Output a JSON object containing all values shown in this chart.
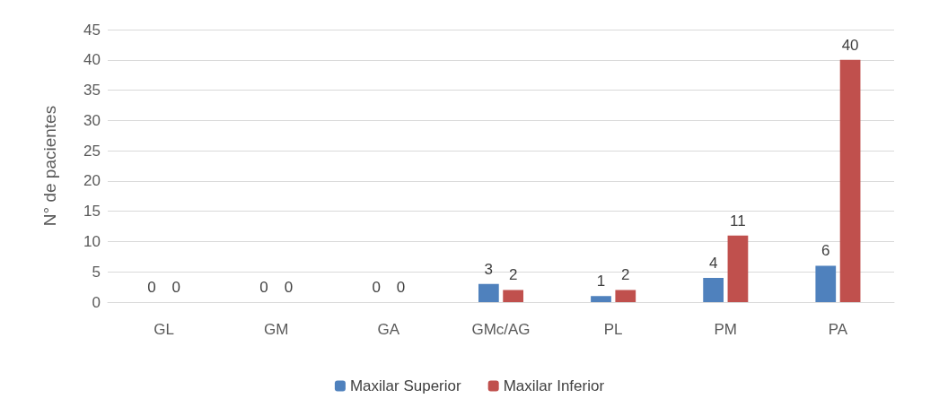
{
  "chart_data": {
    "type": "bar",
    "ylabel": "N° de pacientes",
    "categories": [
      "GL",
      "GM",
      "GA",
      "GMc/AG",
      "PL",
      "PM",
      "PA"
    ],
    "series": [
      {
        "name": "Maxilar Superior",
        "color": "#4f81bd",
        "values": [
          0,
          0,
          0,
          3,
          1,
          4,
          6
        ]
      },
      {
        "name": "Maxilar Inferior",
        "color": "#c0504d",
        "values": [
          0,
          0,
          0,
          2,
          2,
          11,
          40
        ]
      }
    ],
    "ylim": [
      0,
      45
    ],
    "yticks": [
      0,
      5,
      10,
      15,
      20,
      25,
      30,
      35,
      40,
      45
    ],
    "grid": "y",
    "legend": "bottom",
    "data_labels": true
  }
}
